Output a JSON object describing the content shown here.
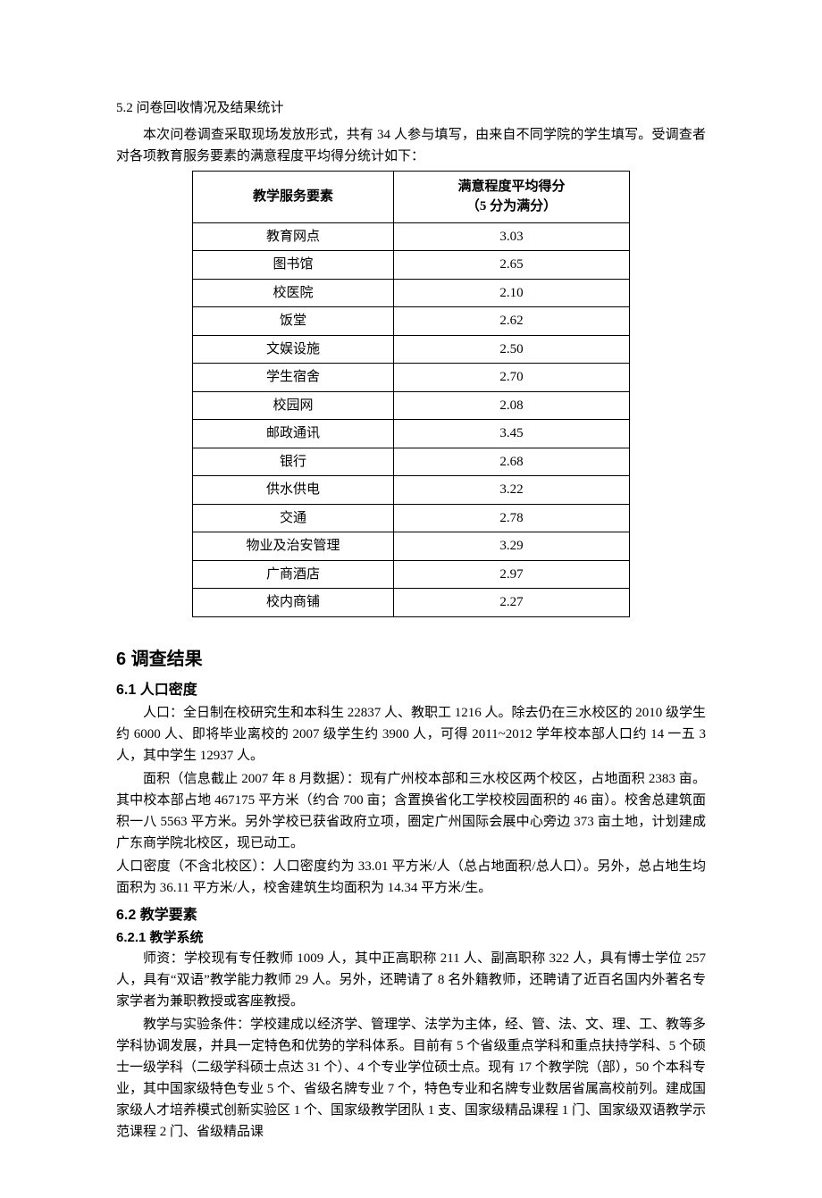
{
  "section52": {
    "heading": "5.2 问卷回收情况及结果统计",
    "p1": "本次问卷调查采取现场发放形式，共有 34 人参与填写，由来自不同学院的学生填写。受调查者对各项教育服务要素的满意程度平均得分统计如下：",
    "table": {
      "header_col1": "教学服务要素",
      "header_col2_line1": "满意程度平均得分",
      "header_col2_line2": "（5 分为满分）",
      "rows": [
        {
          "name": "教育网点",
          "score": "3.03"
        },
        {
          "name": "图书馆",
          "score": "2.65"
        },
        {
          "name": "校医院",
          "score": "2.10"
        },
        {
          "name": "饭堂",
          "score": "2.62"
        },
        {
          "name": "文娱设施",
          "score": "2.50"
        },
        {
          "name": "学生宿舍",
          "score": "2.70"
        },
        {
          "name": "校园网",
          "score": "2.08"
        },
        {
          "name": "邮政通讯",
          "score": "3.45"
        },
        {
          "name": "银行",
          "score": "2.68"
        },
        {
          "name": "供水供电",
          "score": "3.22"
        },
        {
          "name": "交通",
          "score": "2.78"
        },
        {
          "name": "物业及治安管理",
          "score": "3.29"
        },
        {
          "name": "广商酒店",
          "score": "2.97"
        },
        {
          "name": "校内商铺",
          "score": "2.27"
        }
      ]
    }
  },
  "section6": {
    "heading": "6 调查结果",
    "sub61": {
      "heading": "6.1 人口密度",
      "p1": "人口：全日制在校研究生和本科生 22837 人、教职工 1216 人。除去仍在三水校区的 2010 级学生约 6000 人、即将毕业离校的 2007 级学生约 3900 人，可得 2011~2012 学年校本部人口约 14 一五 3 人，其中学生 12937 人。",
      "p2": "面积（信息截止 2007 年 8 月数据）：现有广州校本部和三水校区两个校区，占地面积 2383 亩。其中校本部占地 467175 平方米（约合 700 亩；含置换省化工学校校园面积的 46 亩）。校舍总建筑面积一八 5563 平方米。另外学校已获省政府立项，圈定广州国际会展中心旁边 373 亩土地，计划建成广东商学院北校区，现已动工。",
      "p3": "人口密度（不含北校区）：人口密度约为 33.01 平方米/人（总占地面积/总人口）。另外，总占地生均面积为 36.11 平方米/人，校舍建筑生均面积为 14.34 平方米/生。"
    },
    "sub62": {
      "heading": "6.2 教学要素",
      "sub621": {
        "heading": "6.2.1 教学系统",
        "p1": "师资：学校现有专任教师 1009 人，其中正高职称 211 人、副高职称 322 人，具有博士学位 257 人，具有“双语”教学能力教师 29 人。另外，还聘请了 8 名外籍教师，还聘请了近百名国内外著名专家学者为兼职教授或客座教授。",
        "p2": "教学与实验条件：学校建成以经济学、管理学、法学为主体，经、管、法、文、理、工、教等多学科协调发展，并具一定特色和优势的学科体系。目前有 5 个省级重点学科和重点扶持学科、5 个硕士一级学科（二级学科硕士点达 31 个）、4 个专业学位硕士点。现有 17 个教学院（部），50 个本科专业，其中国家级特色专业 5 个、省级名牌专业 7 个，特色专业和名牌专业数居省属高校前列。建成国家级人才培养模式创新实验区 1 个、国家级教学团队 1 支、国家级精品课程 1 门、国家级双语教学示范课程 2 门、省级精品课"
      }
    }
  }
}
